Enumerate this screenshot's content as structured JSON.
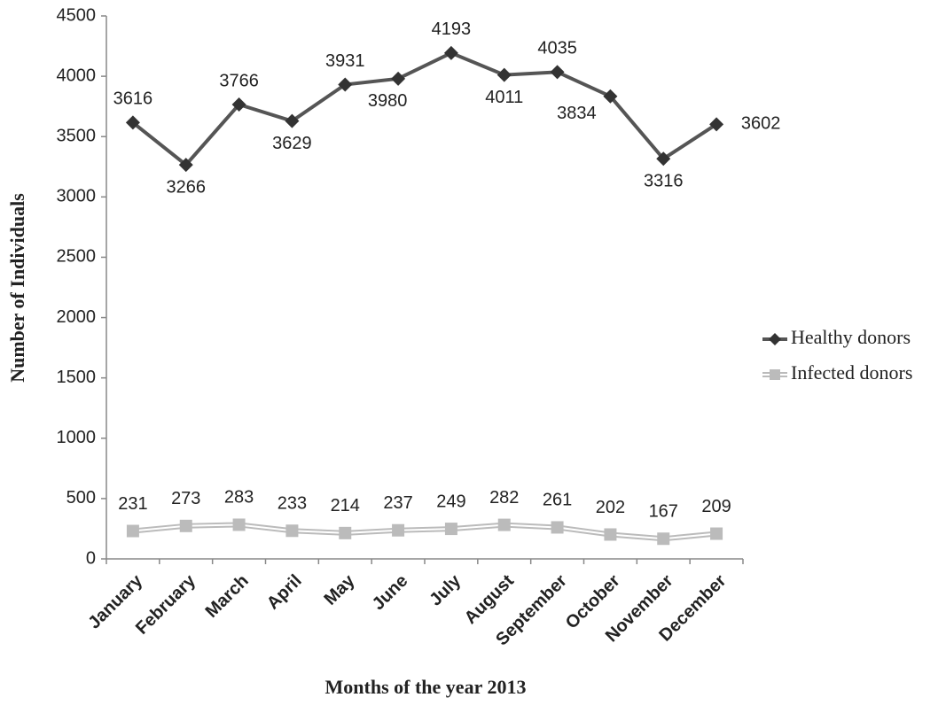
{
  "chart_data": {
    "type": "line",
    "x_label": "Months of the year 2013",
    "y_label": "Number of Individuals",
    "categories": [
      "January",
      "February",
      "March",
      "April",
      "May",
      "June",
      "July",
      "August",
      "September",
      "October",
      "November",
      "December"
    ],
    "series": [
      {
        "name": "Healthy donors",
        "color": "#555555",
        "values": [
          3616,
          3266,
          3766,
          3629,
          3931,
          3980,
          4193,
          4011,
          4035,
          3834,
          3316,
          3602
        ]
      },
      {
        "name": "Infected donors",
        "color": "#bbbbbb",
        "values": [
          231,
          273,
          283,
          233,
          214,
          237,
          249,
          282,
          261,
          202,
          167,
          209
        ]
      }
    ],
    "ylim": [
      0,
      4500
    ],
    "yticks": [
      0,
      500,
      1000,
      1500,
      2000,
      2500,
      3000,
      3500,
      4000,
      4500
    ],
    "legend": "right"
  }
}
